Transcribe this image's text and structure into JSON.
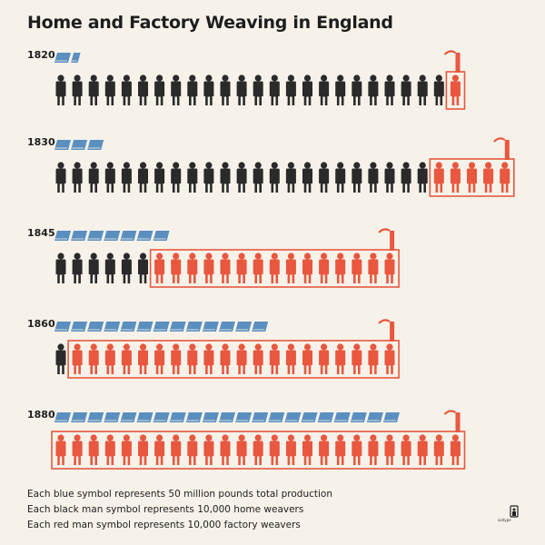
{
  "title": "Home and Factory Weaving in England",
  "colors": {
    "production": "#5b8fbf",
    "home_weavers": "#2a2a2a",
    "factory_weavers": "#e8573e",
    "background": "#f6f2ea"
  },
  "chart_data": {
    "type": "isotype",
    "title": "Home and Factory Weaving in England",
    "units": {
      "production": 50,
      "home_weavers": 10000,
      "factory_weavers": 10000
    },
    "rows": [
      {
        "year": "1820",
        "production_symbols": 1.5,
        "home_weaver_symbols": 24,
        "factory_weaver_symbols": 1
      },
      {
        "year": "1830",
        "production_symbols": 3,
        "home_weaver_symbols": 23,
        "factory_weaver_symbols": 5
      },
      {
        "year": "1845",
        "production_symbols": 7,
        "home_weaver_symbols": 6,
        "factory_weaver_symbols": 15
      },
      {
        "year": "1860",
        "production_symbols": 13,
        "home_weaver_symbols": 1,
        "factory_weaver_symbols": 20
      },
      {
        "year": "1880",
        "production_symbols": 21,
        "home_weaver_symbols": 0,
        "factory_weaver_symbols": 25
      }
    ]
  },
  "legend": [
    "Each blue symbol represents 50 million pounds total production",
    "Each black man symbol represents 10,000 home weavers",
    "Each red man symbol represents 10,000 factory weavers"
  ],
  "logo": {
    "text": "isotype",
    "icon": "isotype-logo-icon"
  }
}
